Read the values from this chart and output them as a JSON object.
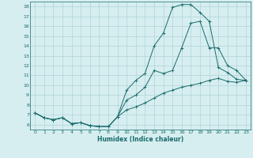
{
  "title": "",
  "xlabel": "Humidex (Indice chaleur)",
  "bg_color": "#d6eef0",
  "grid_color": "#b0d4d8",
  "line_color": "#1a6b6b",
  "xlim": [
    -0.5,
    23.5
  ],
  "ylim": [
    5.5,
    18.5
  ],
  "xticks": [
    0,
    1,
    2,
    3,
    4,
    5,
    6,
    7,
    8,
    9,
    10,
    11,
    12,
    13,
    14,
    15,
    16,
    17,
    18,
    19,
    20,
    21,
    22,
    23
  ],
  "yticks": [
    6,
    7,
    8,
    9,
    10,
    11,
    12,
    13,
    14,
    15,
    16,
    17,
    18
  ],
  "curve1_x": [
    0,
    1,
    2,
    3,
    4,
    5,
    6,
    7,
    8,
    9,
    10,
    11,
    12,
    13,
    14,
    15,
    16,
    17,
    18,
    19,
    20,
    21,
    22,
    23
  ],
  "curve1_y": [
    7.2,
    6.7,
    6.5,
    6.7,
    6.1,
    6.2,
    5.9,
    5.8,
    5.8,
    6.8,
    9.5,
    10.5,
    11.2,
    14.0,
    15.3,
    17.9,
    18.2,
    18.2,
    17.4,
    16.5,
    11.8,
    11.3,
    10.6,
    10.5
  ],
  "curve2_x": [
    0,
    1,
    2,
    3,
    4,
    5,
    6,
    7,
    8,
    9,
    10,
    11,
    12,
    13,
    14,
    15,
    16,
    17,
    18,
    19,
    20,
    21,
    22,
    23
  ],
  "curve2_y": [
    7.2,
    6.7,
    6.5,
    6.7,
    6.1,
    6.2,
    5.9,
    5.8,
    5.8,
    6.8,
    8.5,
    9.0,
    9.8,
    11.5,
    11.2,
    11.5,
    13.8,
    16.3,
    16.5,
    13.8,
    13.8,
    12.0,
    11.5,
    10.5
  ],
  "curve3_x": [
    0,
    1,
    2,
    3,
    4,
    5,
    6,
    7,
    8,
    9,
    10,
    11,
    12,
    13,
    14,
    15,
    16,
    17,
    18,
    19,
    20,
    21,
    22,
    23
  ],
  "curve3_y": [
    7.2,
    6.7,
    6.5,
    6.7,
    6.1,
    6.2,
    5.9,
    5.8,
    5.8,
    6.8,
    7.5,
    7.8,
    8.2,
    8.7,
    9.2,
    9.5,
    9.8,
    10.0,
    10.2,
    10.5,
    10.7,
    10.4,
    10.3,
    10.5
  ]
}
